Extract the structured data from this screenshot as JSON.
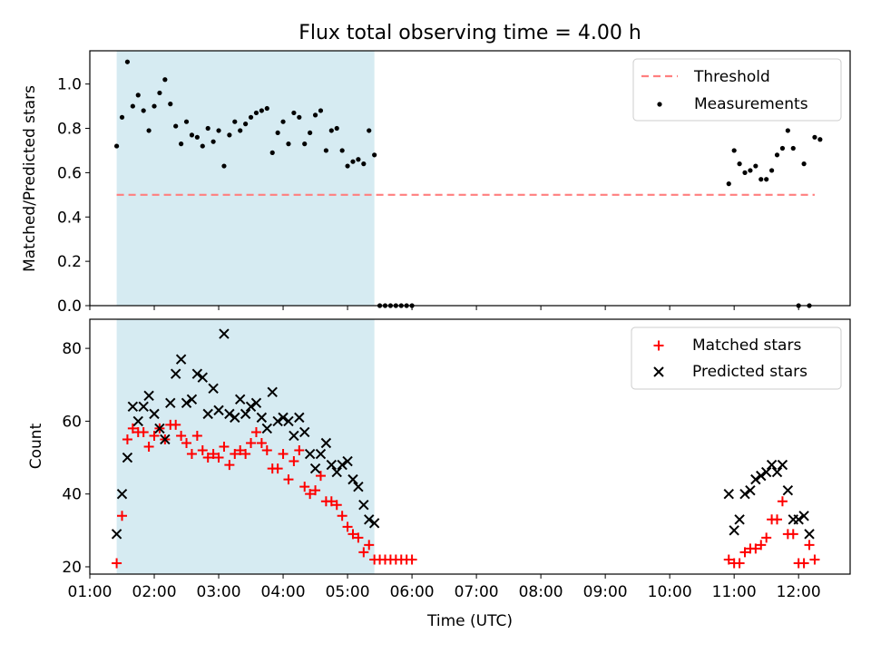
{
  "chart_data": [
    {
      "type": "scatter",
      "panel": "top",
      "title": "Flux total observing time = 4.00 h",
      "xlabel": "",
      "ylabel": "Matched/Predicted stars",
      "xlim": [
        "01:00",
        "12:48"
      ],
      "ylim": [
        0,
        1.15
      ],
      "yticks": [
        0.0,
        0.2,
        0.4,
        0.6,
        0.8,
        1.0
      ],
      "ytick_labels": [
        "0.0",
        "0.2",
        "0.4",
        "0.6",
        "0.8",
        "1.0"
      ],
      "legend_position": "top-right",
      "shaded_interval": {
        "start": "01:25",
        "end": "05:25",
        "color": "#add8e6"
      },
      "threshold": {
        "name": "Threshold",
        "value": 0.5,
        "x_start": "01:25",
        "x_end": "12:15",
        "color": "#ff7f7f"
      },
      "series": [
        {
          "name": "Measurements",
          "color": "#000000",
          "points": [
            [
              "01:25",
              0.72
            ],
            [
              "01:30",
              0.85
            ],
            [
              "01:35",
              1.1
            ],
            [
              "01:40",
              0.9
            ],
            [
              "01:45",
              0.95
            ],
            [
              "01:50",
              0.88
            ],
            [
              "01:55",
              0.79
            ],
            [
              "02:00",
              0.9
            ],
            [
              "02:05",
              0.96
            ],
            [
              "02:10",
              1.02
            ],
            [
              "02:15",
              0.91
            ],
            [
              "02:20",
              0.81
            ],
            [
              "02:25",
              0.73
            ],
            [
              "02:30",
              0.83
            ],
            [
              "02:35",
              0.77
            ],
            [
              "02:40",
              0.76
            ],
            [
              "02:45",
              0.72
            ],
            [
              "02:50",
              0.8
            ],
            [
              "02:55",
              0.74
            ],
            [
              "03:00",
              0.79
            ],
            [
              "03:05",
              0.63
            ],
            [
              "03:10",
              0.77
            ],
            [
              "03:15",
              0.83
            ],
            [
              "03:20",
              0.79
            ],
            [
              "03:25",
              0.82
            ],
            [
              "03:30",
              0.85
            ],
            [
              "03:35",
              0.87
            ],
            [
              "03:40",
              0.88
            ],
            [
              "03:45",
              0.89
            ],
            [
              "03:50",
              0.69
            ],
            [
              "03:55",
              0.78
            ],
            [
              "04:00",
              0.83
            ],
            [
              "04:05",
              0.73
            ],
            [
              "04:10",
              0.87
            ],
            [
              "04:15",
              0.85
            ],
            [
              "04:20",
              0.73
            ],
            [
              "04:25",
              0.78
            ],
            [
              "04:30",
              0.86
            ],
            [
              "04:35",
              0.88
            ],
            [
              "04:40",
              0.7
            ],
            [
              "04:45",
              0.79
            ],
            [
              "04:50",
              0.8
            ],
            [
              "04:55",
              0.7
            ],
            [
              "05:00",
              0.63
            ],
            [
              "05:05",
              0.65
            ],
            [
              "05:10",
              0.66
            ],
            [
              "05:15",
              0.64
            ],
            [
              "05:20",
              0.79
            ],
            [
              "05:25",
              0.68
            ],
            [
              "05:30",
              0.0
            ],
            [
              "05:35",
              0.0
            ],
            [
              "05:40",
              0.0
            ],
            [
              "05:45",
              0.0
            ],
            [
              "05:50",
              0.0
            ],
            [
              "05:55",
              0.0
            ],
            [
              "06:00",
              0.0
            ],
            [
              "10:55",
              0.55
            ],
            [
              "11:00",
              0.7
            ],
            [
              "11:05",
              0.64
            ],
            [
              "11:10",
              0.6
            ],
            [
              "11:15",
              0.61
            ],
            [
              "11:20",
              0.63
            ],
            [
              "11:25",
              0.57
            ],
            [
              "11:30",
              0.57
            ],
            [
              "11:35",
              0.61
            ],
            [
              "11:40",
              0.68
            ],
            [
              "11:45",
              0.71
            ],
            [
              "11:50",
              0.79
            ],
            [
              "11:55",
              0.71
            ],
            [
              "12:00",
              0.0
            ],
            [
              "12:05",
              0.64
            ],
            [
              "12:10",
              0.0
            ],
            [
              "12:15",
              0.76
            ],
            [
              "12:20",
              0.75
            ]
          ]
        }
      ]
    },
    {
      "type": "scatter",
      "panel": "bottom",
      "title": "",
      "xlabel": "Time (UTC)",
      "ylabel": "Count",
      "xlim": [
        "01:00",
        "12:48"
      ],
      "ylim": [
        18,
        88
      ],
      "yticks": [
        20,
        40,
        60,
        80
      ],
      "ytick_labels": [
        "20",
        "40",
        "60",
        "80"
      ],
      "xticks": [
        "01:00",
        "02:00",
        "03:00",
        "04:00",
        "05:00",
        "06:00",
        "07:00",
        "08:00",
        "09:00",
        "10:00",
        "11:00",
        "12:00"
      ],
      "xtick_labels": [
        "01:00",
        "02:00",
        "03:00",
        "04:00",
        "05:00",
        "06:00",
        "07:00",
        "08:00",
        "09:00",
        "10:00",
        "11:00",
        "12:00"
      ],
      "legend_position": "top-right",
      "shaded_interval": {
        "start": "01:25",
        "end": "05:25",
        "color": "#add8e6"
      },
      "series": [
        {
          "name": "Matched stars",
          "marker": "+",
          "color": "#ff0000",
          "points": [
            [
              "01:25",
              21
            ],
            [
              "01:30",
              34
            ],
            [
              "01:35",
              55
            ],
            [
              "01:40",
              58
            ],
            [
              "01:45",
              57
            ],
            [
              "01:50",
              57
            ],
            [
              "01:55",
              53
            ],
            [
              "02:00",
              56
            ],
            [
              "02:05",
              58
            ],
            [
              "02:10",
              55
            ],
            [
              "02:15",
              59
            ],
            [
              "02:20",
              59
            ],
            [
              "02:25",
              56
            ],
            [
              "02:30",
              54
            ],
            [
              "02:35",
              51
            ],
            [
              "02:40",
              56
            ],
            [
              "02:45",
              52
            ],
            [
              "02:50",
              50
            ],
            [
              "02:55",
              51
            ],
            [
              "03:00",
              50
            ],
            [
              "03:05",
              53
            ],
            [
              "03:10",
              48
            ],
            [
              "03:15",
              51
            ],
            [
              "03:20",
              52
            ],
            [
              "03:25",
              51
            ],
            [
              "03:30",
              54
            ],
            [
              "03:35",
              57
            ],
            [
              "03:40",
              54
            ],
            [
              "03:45",
              52
            ],
            [
              "03:50",
              47
            ],
            [
              "03:55",
              47
            ],
            [
              "04:00",
              51
            ],
            [
              "04:05",
              44
            ],
            [
              "04:10",
              49
            ],
            [
              "04:15",
              52
            ],
            [
              "04:20",
              42
            ],
            [
              "04:25",
              40
            ],
            [
              "04:30",
              41
            ],
            [
              "04:35",
              45
            ],
            [
              "04:40",
              38
            ],
            [
              "04:45",
              38
            ],
            [
              "04:50",
              37
            ],
            [
              "04:55",
              34
            ],
            [
              "05:00",
              31
            ],
            [
              "05:05",
              29
            ],
            [
              "05:10",
              28
            ],
            [
              "05:15",
              24
            ],
            [
              "05:20",
              26
            ],
            [
              "05:25",
              22
            ],
            [
              "05:30",
              22
            ],
            [
              "05:35",
              22
            ],
            [
              "05:40",
              22
            ],
            [
              "05:45",
              22
            ],
            [
              "05:50",
              22
            ],
            [
              "05:55",
              22
            ],
            [
              "06:00",
              22
            ],
            [
              "10:55",
              22
            ],
            [
              "11:00",
              21
            ],
            [
              "11:05",
              21
            ],
            [
              "11:10",
              24
            ],
            [
              "11:15",
              25
            ],
            [
              "11:20",
              25
            ],
            [
              "11:25",
              26
            ],
            [
              "11:30",
              28
            ],
            [
              "11:35",
              33
            ],
            [
              "11:40",
              33
            ],
            [
              "11:45",
              38
            ],
            [
              "11:50",
              29
            ],
            [
              "11:55",
              29
            ],
            [
              "12:00",
              21
            ],
            [
              "12:05",
              21
            ],
            [
              "12:10",
              26
            ],
            [
              "12:15",
              22
            ]
          ]
        },
        {
          "name": "Predicted stars",
          "marker": "x",
          "color": "#000000",
          "points": [
            [
              "01:25",
              29
            ],
            [
              "01:30",
              40
            ],
            [
              "01:35",
              50
            ],
            [
              "01:40",
              64
            ],
            [
              "01:45",
              60
            ],
            [
              "01:50",
              64
            ],
            [
              "01:55",
              67
            ],
            [
              "02:00",
              62
            ],
            [
              "02:05",
              58
            ],
            [
              "02:10",
              55
            ],
            [
              "02:15",
              65
            ],
            [
              "02:20",
              73
            ],
            [
              "02:25",
              77
            ],
            [
              "02:30",
              65
            ],
            [
              "02:35",
              66
            ],
            [
              "02:40",
              73
            ],
            [
              "02:45",
              72
            ],
            [
              "02:50",
              62
            ],
            [
              "02:55",
              69
            ],
            [
              "03:00",
              63
            ],
            [
              "03:05",
              84
            ],
            [
              "03:10",
              62
            ],
            [
              "03:15",
              61
            ],
            [
              "03:20",
              66
            ],
            [
              "03:25",
              62
            ],
            [
              "03:30",
              64
            ],
            [
              "03:35",
              65
            ],
            [
              "03:40",
              61
            ],
            [
              "03:45",
              58
            ],
            [
              "03:50",
              68
            ],
            [
              "03:55",
              60
            ],
            [
              "04:00",
              61
            ],
            [
              "04:05",
              60
            ],
            [
              "04:10",
              56
            ],
            [
              "04:15",
              61
            ],
            [
              "04:20",
              57
            ],
            [
              "04:25",
              51
            ],
            [
              "04:30",
              47
            ],
            [
              "04:35",
              51
            ],
            [
              "04:40",
              54
            ],
            [
              "04:45",
              48
            ],
            [
              "04:50",
              46
            ],
            [
              "04:55",
              48
            ],
            [
              "05:00",
              49
            ],
            [
              "05:05",
              44
            ],
            [
              "05:10",
              42
            ],
            [
              "05:15",
              37
            ],
            [
              "05:20",
              33
            ],
            [
              "05:25",
              32
            ],
            [
              "10:55",
              40
            ],
            [
              "11:00",
              30
            ],
            [
              "11:05",
              33
            ],
            [
              "11:10",
              40
            ],
            [
              "11:15",
              41
            ],
            [
              "11:20",
              44
            ],
            [
              "11:25",
              45
            ],
            [
              "11:30",
              46
            ],
            [
              "11:35",
              48
            ],
            [
              "11:40",
              46
            ],
            [
              "11:45",
              48
            ],
            [
              "11:50",
              41
            ],
            [
              "11:55",
              33
            ],
            [
              "12:00",
              33
            ],
            [
              "12:05",
              34
            ],
            [
              "12:10",
              29
            ]
          ]
        }
      ]
    }
  ]
}
